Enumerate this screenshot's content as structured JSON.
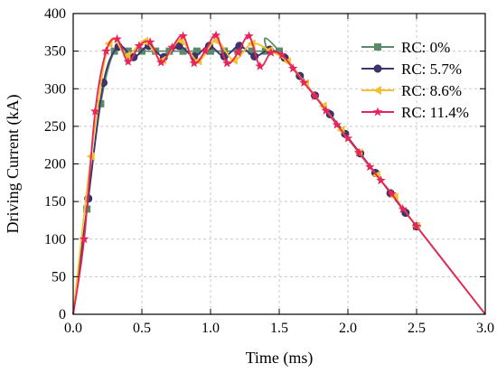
{
  "chart_data": {
    "type": "line",
    "title": "",
    "xlabel": "Time (ms)",
    "ylabel": "Driving Current (kA)",
    "xlim": [
      0,
      3.0
    ],
    "ylim": [
      0,
      400
    ],
    "x_ticks": [
      0.0,
      0.5,
      1.0,
      1.5,
      2.0,
      2.5,
      3.0
    ],
    "x_tick_labels": [
      "0.0",
      "0.5",
      "1.0",
      "1.5",
      "2.0",
      "2.5",
      "3.0"
    ],
    "y_ticks": [
      0,
      50,
      100,
      150,
      200,
      250,
      300,
      350,
      400
    ],
    "y_tick_labels": [
      "0",
      "50",
      "100",
      "150",
      "200",
      "250",
      "300",
      "350",
      "400"
    ],
    "grid": true,
    "legend_position": "top-right",
    "series": [
      {
        "name": "RC: 0%",
        "color": "#5a8a6a",
        "marker": "square",
        "x": [
          0,
          0.1,
          0.2,
          0.3,
          0.4,
          0.5,
          0.6,
          0.7,
          0.8,
          0.9,
          1.0,
          1.1,
          1.2,
          1.3,
          1.4,
          1.5,
          2.5,
          3.0
        ],
        "y": [
          0,
          140,
          280,
          350,
          350,
          350,
          350,
          350,
          350,
          350,
          350,
          350,
          350,
          350,
          350,
          350,
          117,
          0
        ]
      },
      {
        "name": "RC: 5.7%",
        "color": "#3d3470",
        "marker": "circle",
        "x": [
          0,
          0.11,
          0.22,
          0.33,
          0.44,
          0.55,
          0.66,
          0.77,
          0.88,
          0.99,
          1.1,
          1.21,
          1.32,
          1.43,
          1.54,
          1.65,
          1.76,
          1.87,
          1.98,
          2.09,
          2.2,
          2.31,
          2.42,
          2.5,
          3.0
        ],
        "y": [
          0,
          154,
          308,
          356,
          342,
          357,
          342,
          357,
          343,
          357,
          343,
          357,
          343,
          352,
          341,
          317,
          291,
          266,
          240,
          214,
          188,
          161,
          135,
          117,
          0
        ]
      },
      {
        "name": "RC: 8.6%",
        "color": "#f2c12e",
        "marker": "triangle-left",
        "x": [
          0,
          0.13,
          0.26,
          0.39,
          0.52,
          0.65,
          0.78,
          0.91,
          1.04,
          1.17,
          1.3,
          1.43,
          1.56,
          1.69,
          1.82,
          1.95,
          2.08,
          2.21,
          2.34,
          2.5,
          3.0
        ],
        "y": [
          0,
          210,
          360,
          344,
          363,
          338,
          364,
          337,
          364,
          338,
          360,
          351,
          336,
          307,
          277,
          245,
          215,
          185,
          156,
          117,
          0
        ]
      },
      {
        "name": "RC: 11.4%",
        "color": "#e8245a",
        "marker": "star",
        "x": [
          0,
          0.08,
          0.16,
          0.24,
          0.32,
          0.4,
          0.48,
          0.56,
          0.64,
          0.72,
          0.8,
          0.88,
          0.96,
          1.04,
          1.12,
          1.2,
          1.28,
          1.36,
          1.44,
          1.52,
          1.6,
          1.68,
          1.76,
          1.84,
          1.92,
          2.0,
          2.08,
          2.16,
          2.24,
          2.32,
          2.4,
          2.5,
          3.0
        ],
        "y": [
          0,
          100,
          270,
          350,
          366,
          336,
          357,
          362,
          335,
          355,
          370,
          334,
          350,
          371,
          334,
          348,
          370,
          330,
          348,
          345,
          327,
          308,
          290,
          271,
          252,
          234,
          215,
          196,
          178,
          160,
          140,
          117,
          0
        ]
      }
    ]
  }
}
